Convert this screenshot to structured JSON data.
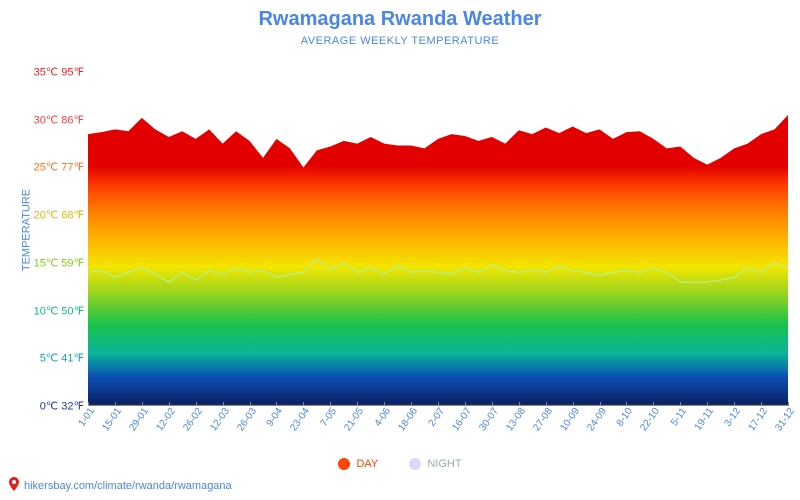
{
  "title": {
    "text": "Rwamagana Rwanda Weather",
    "color": "#4a86e8",
    "fontsize": 20
  },
  "subtitle": {
    "text": "AVERAGE WEEKLY TEMPERATURE",
    "color": "#4a86e8",
    "fontsize": 11
  },
  "ylabel": {
    "text": "TEMPERATURE",
    "color": "#4a86e8",
    "fontsize": 11
  },
  "legend": {
    "day": {
      "label": "DAY",
      "color": "#ff4500"
    },
    "night": {
      "label": "NIGHT",
      "color": "#d9d9f3"
    }
  },
  "footer": {
    "text": "hikersbay.com/climate/rwanda/rwamagana",
    "color": "#4a86e8"
  },
  "chart": {
    "type": "area-rainbow",
    "ylim_c": [
      0,
      37
    ],
    "plot_bg": "#ffffff",
    "yticks": [
      {
        "c": 0,
        "label": "0℃ 32℉",
        "color": "#1e3a8a"
      },
      {
        "c": 5,
        "label": "5℃ 41℉",
        "color": "#0ea5b7"
      },
      {
        "c": 10,
        "label": "10℃ 50℉",
        "color": "#10b981"
      },
      {
        "c": 15,
        "label": "15℃ 59℉",
        "color": "#84cc16"
      },
      {
        "c": 20,
        "label": "20℃ 68℉",
        "color": "#eab308"
      },
      {
        "c": 25,
        "label": "25℃ 77℉",
        "color": "#f97316"
      },
      {
        "c": 30,
        "label": "30℃ 86℉",
        "color": "#ef4444"
      },
      {
        "c": 35,
        "label": "35℃ 95℉",
        "color": "#dc2626"
      }
    ],
    "xticks": [
      "1-01",
      "15-01",
      "29-01",
      "12-02",
      "26-02",
      "12-03",
      "26-03",
      "9-04",
      "23-04",
      "7-05",
      "21-05",
      "4-06",
      "18-06",
      "2-07",
      "16-07",
      "30-07",
      "13-08",
      "27-08",
      "10-09",
      "24-09",
      "8-10",
      "22-10",
      "5-11",
      "19-11",
      "3-12",
      "17-12",
      "31-12"
    ],
    "xtick_color": "#4a86e8",
    "rainbow_stops": [
      {
        "t": 0.0,
        "color": "#0b1e5e"
      },
      {
        "t": 0.12,
        "color": "#0b4fb3"
      },
      {
        "t": 0.22,
        "color": "#0bb39b"
      },
      {
        "t": 0.34,
        "color": "#19c24a"
      },
      {
        "t": 0.46,
        "color": "#8fd224"
      },
      {
        "t": 0.58,
        "color": "#f2e600"
      },
      {
        "t": 0.7,
        "color": "#ffb200"
      },
      {
        "t": 0.82,
        "color": "#ff7a00"
      },
      {
        "t": 0.92,
        "color": "#ff3c00"
      },
      {
        "t": 1.0,
        "color": "#e20000"
      }
    ],
    "day_c": [
      28.5,
      28.7,
      29.0,
      28.8,
      30.2,
      29.0,
      28.2,
      28.8,
      28.0,
      29.0,
      27.5,
      28.8,
      27.8,
      26.0,
      28.0,
      27.0,
      25.0,
      26.8,
      27.2,
      27.8,
      27.5,
      28.2,
      27.5,
      27.3,
      27.3,
      27.0,
      28.0,
      28.5,
      28.3,
      27.8,
      28.2,
      27.5,
      28.9,
      28.5,
      29.2,
      28.6,
      29.3,
      28.6,
      29.0,
      28.0,
      28.7,
      28.8,
      28.0,
      27.0,
      27.2,
      26.0,
      25.3,
      26.0,
      27.0,
      27.5,
      28.5,
      29.0,
      30.5
    ],
    "night_c": [
      14.0,
      14.2,
      13.5,
      14.0,
      14.5,
      13.8,
      13.0,
      14.0,
      13.2,
      14.2,
      13.8,
      14.5,
      14.0,
      14.2,
      13.5,
      13.8,
      14.0,
      15.5,
      14.3,
      15.0,
      14.0,
      14.5,
      13.8,
      14.7,
      14.0,
      14.2,
      14.0,
      13.8,
      14.5,
      14.0,
      14.8,
      14.2,
      14.0,
      14.3,
      14.0,
      14.7,
      14.2,
      14.0,
      13.7,
      14.0,
      14.2,
      14.0,
      14.4,
      14.0,
      13.0,
      13.0,
      13.0,
      13.2,
      13.5,
      14.5,
      14.0,
      15.0,
      14.5
    ],
    "night_stroke": "#b7f08a",
    "night_stroke_width": 1.2
  }
}
